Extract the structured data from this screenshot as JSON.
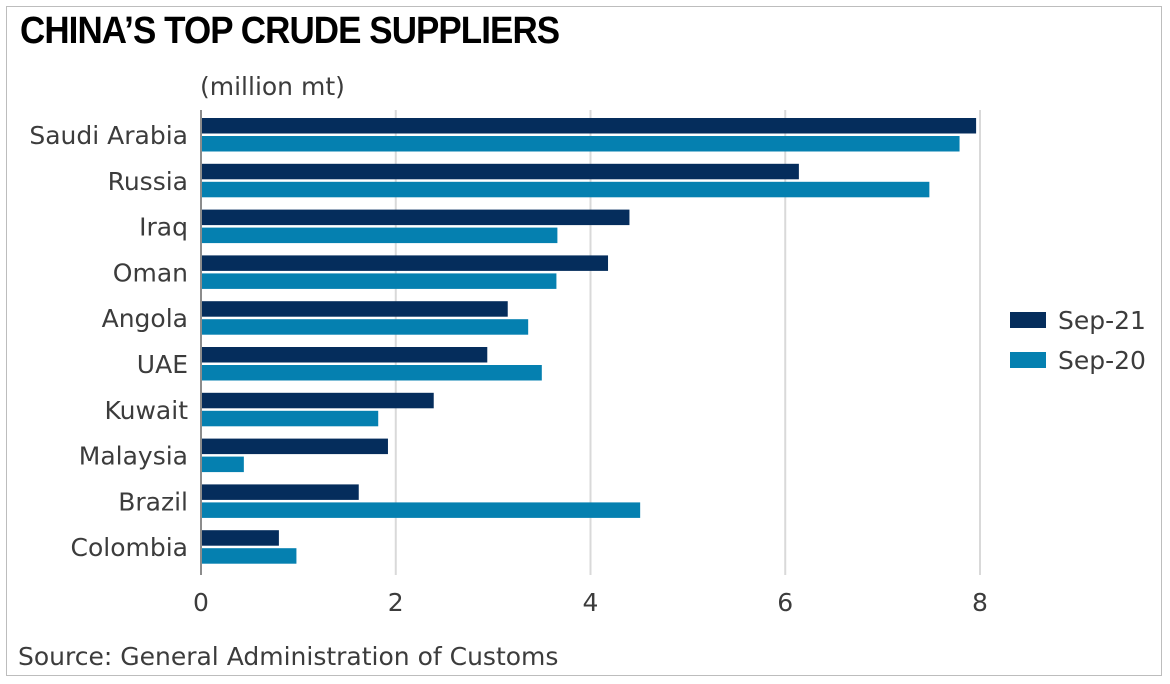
{
  "title": "CHINA’S TOP CRUDE SUPPLIERS",
  "unit_label": "(million mt)",
  "source": "Source: General Administration of Customs",
  "colors": {
    "sep21": "#052d5c",
    "sep20": "#0580b0",
    "grid": "#d9d9d9",
    "axis": "#8c8c8c"
  },
  "chart_data": {
    "type": "bar",
    "orientation": "horizontal",
    "title": "CHINA’S TOP CRUDE SUPPLIERS",
    "xlabel": "",
    "ylabel": "",
    "unit": "(million mt)",
    "categories": [
      "Saudi Arabia",
      "Russia",
      "Iraq",
      "Oman",
      "Angola",
      "UAE",
      "Kuwait",
      "Malaysia",
      "Brazil",
      "Colombia"
    ],
    "series": [
      {
        "name": "Sep-21",
        "color": "#052d5c",
        "values": [
          7.96,
          6.14,
          4.4,
          4.18,
          3.15,
          2.94,
          2.39,
          1.92,
          1.62,
          0.8
        ]
      },
      {
        "name": "Sep-20",
        "color": "#0580b0",
        "values": [
          7.79,
          7.48,
          3.66,
          3.65,
          3.36,
          3.5,
          1.82,
          0.44,
          4.51,
          0.98
        ]
      }
    ],
    "xlim": [
      0,
      8
    ],
    "xticks": [
      0,
      2,
      4,
      6,
      8
    ],
    "grid": "vertical",
    "legend": "right"
  }
}
